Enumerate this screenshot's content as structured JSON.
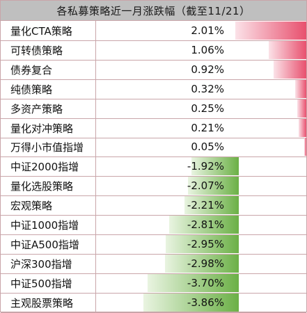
{
  "colors": {
    "positive": "#e8506e",
    "negative": "#6bb046",
    "border": "#c9a5a9",
    "header_bg": "#bfbfbf"
  },
  "chart_data": {
    "type": "table",
    "title": "各私募策略近一月涨跌幅（截至11/21）",
    "unit": "%",
    "rows": [
      {
        "name": "量化CTA策略",
        "value": 2.01,
        "label": "2.01%"
      },
      {
        "name": "可转债策略",
        "value": 1.06,
        "label": "1.06%"
      },
      {
        "name": "债券复合",
        "value": 0.92,
        "label": "0.92%"
      },
      {
        "name": "纯债策略",
        "value": 0.32,
        "label": "0.32%"
      },
      {
        "name": "多资产策略",
        "value": 0.25,
        "label": "0.25%"
      },
      {
        "name": "量化对冲策略",
        "value": 0.21,
        "label": "0.21%"
      },
      {
        "name": "万得小市值指增",
        "value": 0.05,
        "label": "0.05%"
      },
      {
        "name": "中证2000指增",
        "value": -1.92,
        "label": "-1.92%"
      },
      {
        "name": "量化选股策略",
        "value": -2.07,
        "label": "-2.07%"
      },
      {
        "name": "宏观策略",
        "value": -2.21,
        "label": "-2.21%"
      },
      {
        "name": "中证1000指增",
        "value": -2.81,
        "label": "-2.81%"
      },
      {
        "name": "中证A500指增",
        "value": -2.95,
        "label": "-2.95%"
      },
      {
        "name": "沪深300指增",
        "value": -2.98,
        "label": "-2.98%"
      },
      {
        "name": "中证500指增",
        "value": -3.7,
        "label": "-3.70%"
      },
      {
        "name": "主观股票策略",
        "value": -3.86,
        "label": "-3.86%"
      }
    ]
  }
}
